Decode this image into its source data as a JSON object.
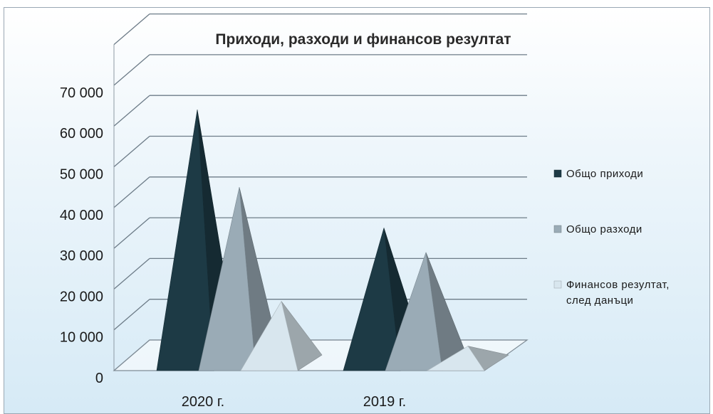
{
  "chart_data": {
    "type": "bar",
    "style": "3d-pyramid",
    "title": "Приходи, разходи и финансов резултат",
    "categories": [
      "2020 г.",
      "2019 г."
    ],
    "series": [
      {
        "name": "Общо приходи",
        "values": [
          64000,
          35000
        ],
        "color": "#1d3a45"
      },
      {
        "name": "Общо разходи",
        "values": [
          45000,
          29000
        ],
        "color": "#9aabb6"
      },
      {
        "name_lines": [
          "Финансов резултат,",
          "след данъци"
        ],
        "name": "Финансов резултат, след данъци",
        "values": [
          17000,
          6000
        ],
        "color": "#d8e6ee"
      }
    ],
    "yticks": [
      "0",
      "10 000",
      "20 000",
      "30 000",
      "40 000",
      "50 000",
      "60 000",
      "70 000"
    ],
    "ylim": [
      0,
      70000
    ],
    "grid": true,
    "legend_position": "right"
  }
}
